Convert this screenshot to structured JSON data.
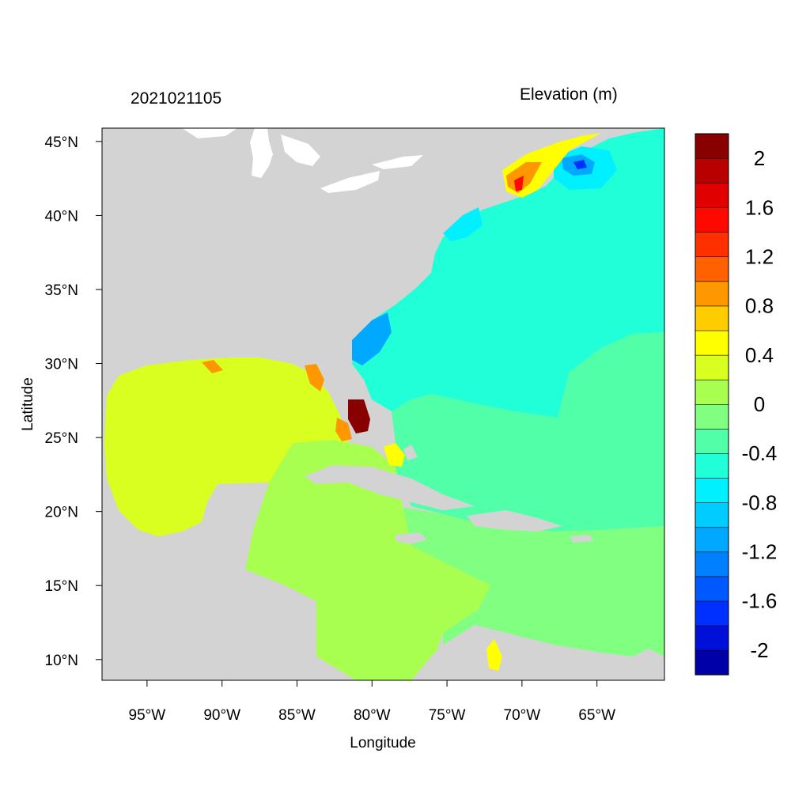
{
  "header": {
    "timestamp": "2021021105",
    "variable_title": "Elevation (m)"
  },
  "axes": {
    "xlabel": "Longitude",
    "ylabel": "Latitude",
    "lon_range": [
      -98,
      -60.5
    ],
    "lat_range": [
      8.6,
      45.9
    ],
    "xticks": [
      {
        "value": -95,
        "label": "95°W"
      },
      {
        "value": -90,
        "label": "90°W"
      },
      {
        "value": -85,
        "label": "85°W"
      },
      {
        "value": -80,
        "label": "80°W"
      },
      {
        "value": -75,
        "label": "75°W"
      },
      {
        "value": -70,
        "label": "70°W"
      },
      {
        "value": -65,
        "label": "65°W"
      }
    ],
    "yticks": [
      {
        "value": 10,
        "label": "10°N"
      },
      {
        "value": 15,
        "label": "15°N"
      },
      {
        "value": 20,
        "label": "20°N"
      },
      {
        "value": 25,
        "label": "25°N"
      },
      {
        "value": 30,
        "label": "30°N"
      },
      {
        "value": 35,
        "label": "35°N"
      },
      {
        "value": 40,
        "label": "40°N"
      },
      {
        "value": 45,
        "label": "45°N"
      }
    ]
  },
  "colorbar": {
    "colors": [
      "#0000a8",
      "#0010d8",
      "#0030ff",
      "#0058ff",
      "#0080ff",
      "#00a8ff",
      "#00ccff",
      "#00f0ff",
      "#20ffd8",
      "#50ffa8",
      "#80ff80",
      "#a8ff50",
      "#d8ff20",
      "#ffff00",
      "#ffcc00",
      "#ff9800",
      "#ff6000",
      "#ff3000",
      "#ff0800",
      "#e00000",
      "#b80000",
      "#880000"
    ],
    "boundaries": [
      -2.2,
      -2.0,
      -1.8,
      -1.6,
      -1.4,
      -1.2,
      -1.0,
      -0.8,
      -0.6,
      -0.4,
      -0.2,
      0,
      0.2,
      0.4,
      0.6,
      0.8,
      1.0,
      1.2,
      1.4,
      1.6,
      1.8,
      2.0,
      2.2
    ],
    "labels": [
      "2",
      "1.6",
      "1.2",
      "0.8",
      "0.4",
      "0",
      "-0.4",
      "-0.8",
      "-1.2",
      "-1.6",
      "-2"
    ]
  },
  "colors": {
    "land": "#d3d3d3",
    "lakes": "#ffffff",
    "gulf": "#d8ff20",
    "caribbean_west": "#a8ff50",
    "caribbean_east": "#80ff80",
    "atlantic_south": "#50ffa8",
    "atlantic_north": "#20ffd8",
    "surge_max": "#880000"
  }
}
